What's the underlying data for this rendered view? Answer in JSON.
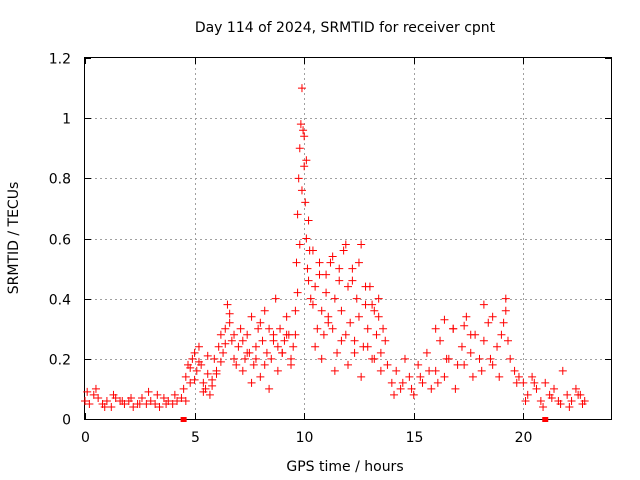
{
  "chart_data": {
    "type": "scatter",
    "title": "Day 114 of 2024, SRMTID for receiver cpnt",
    "xlabel": "GPS time / hours",
    "ylabel": "SRMTID / TECUs",
    "xlim": [
      0,
      24
    ],
    "ylim": [
      0,
      1.2
    ],
    "xticks": [
      0,
      5,
      10,
      15,
      20
    ],
    "xtick_labels": [
      "0",
      "5",
      "10",
      "15",
      "20"
    ],
    "yticks": [
      0,
      0.2,
      0.4,
      0.6,
      0.8,
      1.0,
      1.2
    ],
    "ytick_labels": [
      "0",
      "0.2",
      "0.4",
      "0.6",
      "0.8",
      "1",
      "1.2"
    ],
    "grid": true,
    "marker": "+",
    "series_color": "#ff0000",
    "axis_markers_x": [
      4.5,
      21.0
    ],
    "series": [
      {
        "name": "SRMTID",
        "x": [
          0.0,
          0.2,
          0.4,
          0.6,
          0.8,
          1.0,
          1.2,
          1.4,
          1.6,
          1.8,
          2.0,
          2.2,
          2.4,
          2.6,
          2.8,
          3.0,
          3.2,
          3.4,
          3.6,
          3.8,
          4.0,
          4.2,
          4.4,
          0.1,
          0.5,
          0.9,
          1.3,
          1.7,
          2.1,
          2.5,
          2.9,
          3.3,
          3.7,
          4.1,
          4.5,
          4.6,
          4.7,
          4.8,
          4.9,
          5.0,
          5.1,
          5.2,
          5.3,
          5.4,
          5.5,
          5.6,
          5.7,
          5.8,
          5.9,
          6.0,
          6.1,
          6.2,
          6.3,
          6.4,
          6.5,
          6.6,
          6.7,
          6.8,
          6.9,
          7.0,
          4.6,
          4.8,
          5.0,
          5.2,
          5.4,
          5.6,
          5.8,
          6.0,
          6.2,
          6.4,
          6.6,
          6.8,
          7.1,
          7.2,
          7.3,
          7.4,
          7.5,
          7.6,
          7.7,
          7.8,
          7.9,
          8.0,
          8.1,
          8.2,
          8.3,
          8.4,
          8.5,
          8.6,
          8.7,
          8.8,
          8.9,
          9.0,
          9.1,
          9.2,
          9.3,
          9.4,
          9.5,
          7.2,
          7.4,
          7.6,
          7.8,
          8.0,
          8.2,
          8.4,
          8.6,
          8.8,
          9.0,
          9.2,
          9.4,
          9.6,
          9.65,
          9.7,
          9.75,
          9.8,
          9.85,
          9.9,
          9.95,
          10.0,
          10.05,
          10.1,
          10.15,
          10.2,
          10.25,
          10.3,
          9.6,
          9.7,
          9.8,
          9.9,
          10.0,
          10.1,
          10.2,
          10.4,
          10.5,
          10.6,
          10.7,
          10.8,
          10.9,
          11.0,
          11.1,
          11.2,
          11.3,
          11.4,
          11.5,
          11.6,
          11.7,
          11.8,
          11.9,
          12.0,
          12.1,
          12.2,
          12.3,
          12.4,
          12.5,
          12.6,
          12.7,
          12.8,
          12.9,
          13.0,
          13.1,
          13.2,
          13.3,
          13.4,
          13.5,
          13.6,
          13.7,
          13.8,
          10.5,
          10.8,
          11.1,
          11.4,
          11.7,
          12.0,
          12.3,
          12.6,
          12.9,
          13.2,
          13.5,
          10.4,
          10.7,
          11.0,
          11.3,
          11.6,
          11.9,
          12.2,
          12.5,
          12.8,
          13.1,
          13.4,
          14.0,
          14.2,
          14.4,
          14.6,
          14.8,
          15.0,
          15.2,
          15.4,
          15.6,
          15.8,
          16.0,
          16.2,
          16.4,
          16.6,
          16.8,
          17.0,
          17.2,
          17.4,
          17.6,
          17.8,
          18.0,
          18.2,
          18.4,
          18.6,
          18.8,
          19.0,
          19.2,
          19.4,
          19.6,
          19.8,
          14.1,
          14.5,
          14.9,
          15.3,
          15.7,
          16.1,
          16.5,
          16.9,
          17.3,
          17.7,
          18.1,
          18.5,
          18.9,
          19.3,
          19.7,
          16.0,
          16.4,
          16.8,
          17.3,
          17.6,
          18.2,
          18.6,
          19.1,
          19.2,
          20.0,
          20.2,
          20.4,
          20.6,
          20.8,
          21.0,
          21.2,
          21.4,
          21.6,
          21.8,
          22.0,
          22.2,
          22.4,
          22.6,
          22.8,
          20.1,
          20.5,
          20.9,
          21.3,
          21.7,
          22.1,
          22.5,
          22.7
        ],
        "y": [
          0.06,
          0.05,
          0.08,
          0.07,
          0.05,
          0.06,
          0.04,
          0.07,
          0.06,
          0.05,
          0.06,
          0.04,
          0.05,
          0.07,
          0.05,
          0.06,
          0.05,
          0.04,
          0.07,
          0.06,
          0.05,
          0.06,
          0.07,
          0.09,
          0.1,
          0.04,
          0.08,
          0.06,
          0.07,
          0.05,
          0.09,
          0.08,
          0.05,
          0.08,
          0.1,
          0.14,
          0.18,
          0.12,
          0.2,
          0.22,
          0.16,
          0.24,
          0.18,
          0.12,
          0.1,
          0.15,
          0.08,
          0.13,
          0.2,
          0.16,
          0.24,
          0.28,
          0.22,
          0.3,
          0.38,
          0.32,
          0.26,
          0.2,
          0.18,
          0.24,
          0.06,
          0.17,
          0.13,
          0.19,
          0.09,
          0.21,
          0.11,
          0.15,
          0.19,
          0.25,
          0.35,
          0.28,
          0.3,
          0.26,
          0.2,
          0.28,
          0.22,
          0.34,
          0.18,
          0.24,
          0.3,
          0.14,
          0.26,
          0.36,
          0.22,
          0.3,
          0.2,
          0.28,
          0.4,
          0.24,
          0.3,
          0.22,
          0.26,
          0.34,
          0.28,
          0.2,
          0.24,
          0.16,
          0.22,
          0.12,
          0.2,
          0.32,
          0.18,
          0.1,
          0.26,
          0.16,
          0.22,
          0.28,
          0.18,
          0.36,
          0.52,
          0.68,
          0.8,
          0.9,
          0.98,
          1.1,
          0.96,
          0.84,
          0.72,
          0.6,
          0.5,
          0.46,
          0.56,
          0.4,
          0.28,
          0.42,
          0.58,
          0.76,
          0.94,
          0.86,
          0.66,
          0.38,
          0.44,
          0.3,
          0.48,
          0.36,
          0.28,
          0.42,
          0.34,
          0.52,
          0.3,
          0.4,
          0.22,
          0.46,
          0.36,
          0.56,
          0.28,
          0.44,
          0.32,
          0.5,
          0.26,
          0.4,
          0.34,
          0.58,
          0.24,
          0.38,
          0.3,
          0.44,
          0.2,
          0.36,
          0.28,
          0.4,
          0.22,
          0.3,
          0.26,
          0.18,
          0.24,
          0.2,
          0.32,
          0.16,
          0.26,
          0.18,
          0.22,
          0.14,
          0.24,
          0.2,
          0.16,
          0.56,
          0.52,
          0.48,
          0.54,
          0.5,
          0.58,
          0.46,
          0.52,
          0.44,
          0.38,
          0.34,
          0.12,
          0.16,
          0.1,
          0.2,
          0.14,
          0.08,
          0.18,
          0.12,
          0.22,
          0.1,
          0.16,
          0.26,
          0.14,
          0.2,
          0.3,
          0.18,
          0.24,
          0.34,
          0.22,
          0.28,
          0.2,
          0.26,
          0.32,
          0.18,
          0.24,
          0.28,
          0.36,
          0.2,
          0.16,
          0.14,
          0.08,
          0.12,
          0.1,
          0.14,
          0.16,
          0.12,
          0.2,
          0.1,
          0.18,
          0.14,
          0.16,
          0.2,
          0.14,
          0.26,
          0.12,
          0.3,
          0.33,
          0.3,
          0.31,
          0.28,
          0.38,
          0.34,
          0.32,
          0.4,
          0.12,
          0.08,
          0.14,
          0.1,
          0.06,
          0.12,
          0.08,
          0.1,
          0.06,
          0.16,
          0.08,
          0.06,
          0.1,
          0.08,
          0.06,
          0.06,
          0.12,
          0.04,
          0.07,
          0.05,
          0.04,
          0.08,
          0.05
        ]
      }
    ]
  }
}
